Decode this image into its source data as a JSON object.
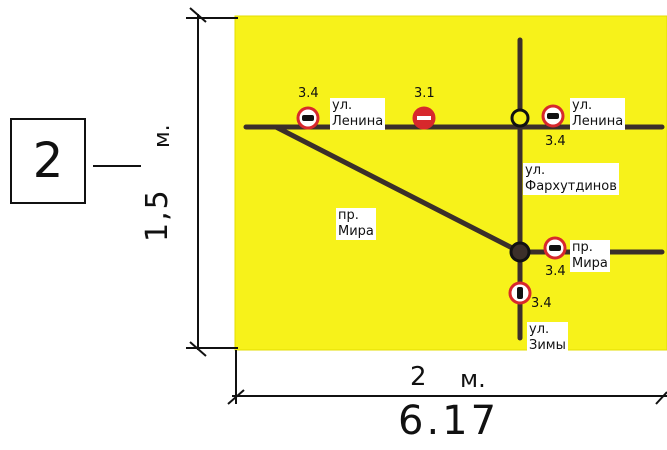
{
  "figure_number": "2",
  "dimension_height": "1,5",
  "dimension_height_unit": "м.",
  "dimension_width": "2",
  "dimension_width_unit": "м.",
  "figure_code": "6.17",
  "colors": {
    "background": "#f7f21a",
    "road": "#3b2f2a",
    "sign_ring": "#d7282c",
    "node": "#111111"
  },
  "streets": {
    "lenina_left": "ул.\nЛенина",
    "lenina_right": "ул.\nЛенина",
    "farkhutdinov": "ул.\nФархутдинов",
    "mira_left": "пр.\nМира",
    "mira_right": "пр.\nМира",
    "zimy": "ул.\nЗимы"
  },
  "signs": {
    "s1": "3.4",
    "s2": "3.1",
    "s3": "3.4",
    "s4": "3.4",
    "s5": "3.4"
  }
}
